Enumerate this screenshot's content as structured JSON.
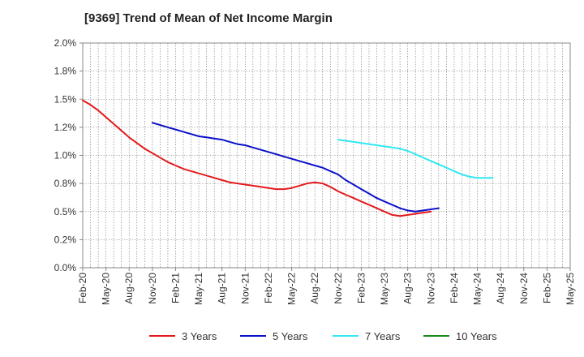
{
  "chart_data": {
    "type": "line",
    "title": "[9369]  Trend of Mean of Net Income Margin",
    "xlabel": "",
    "ylabel": "",
    "ylim": [
      0,
      2.0
    ],
    "yticks": [
      "0.0%",
      "0.2%",
      "0.5%",
      "0.8%",
      "1.0%",
      "1.2%",
      "1.5%",
      "1.8%",
      "2.0%"
    ],
    "xticks": [
      "Feb-20",
      "May-20",
      "Aug-20",
      "Nov-20",
      "Feb-21",
      "May-21",
      "Aug-21",
      "Nov-21",
      "Feb-22",
      "May-22",
      "Aug-22",
      "Nov-22",
      "Feb-23",
      "May-23",
      "Aug-23",
      "Nov-23",
      "Feb-24",
      "May-24",
      "Aug-24",
      "Nov-24",
      "Feb-25",
      "May-25"
    ],
    "grid": true,
    "legend_position": "bottom",
    "series": [
      {
        "name": "3 Years",
        "color": "#e31a1c",
        "start_index": 0,
        "values": [
          1.49,
          1.45,
          1.4,
          1.34,
          1.28,
          1.22,
          1.16,
          1.11,
          1.06,
          1.02,
          0.98,
          0.94,
          0.91,
          0.88,
          0.86,
          0.84,
          0.82,
          0.8,
          0.78,
          0.76,
          0.75,
          0.74,
          0.73,
          0.72,
          0.71,
          0.7,
          0.7,
          0.71,
          0.73,
          0.75,
          0.76,
          0.75,
          0.72,
          0.68,
          0.65,
          0.62,
          0.59,
          0.56,
          0.53,
          0.5,
          0.47,
          0.46,
          0.47,
          0.48,
          0.49,
          0.5
        ]
      },
      {
        "name": "5 Years",
        "color": "#0a10c8",
        "start_index": 9,
        "values": [
          1.29,
          1.27,
          1.25,
          1.23,
          1.21,
          1.19,
          1.17,
          1.16,
          1.15,
          1.14,
          1.12,
          1.1,
          1.09,
          1.07,
          1.05,
          1.03,
          1.01,
          0.99,
          0.97,
          0.95,
          0.93,
          0.91,
          0.89,
          0.86,
          0.83,
          0.78,
          0.74,
          0.7,
          0.66,
          0.62,
          0.59,
          0.56,
          0.53,
          0.51,
          0.5,
          0.51,
          0.52,
          0.53
        ]
      },
      {
        "name": "7 Years",
        "color": "#33e8f0",
        "start_index": 33,
        "values": [
          1.14,
          1.13,
          1.12,
          1.11,
          1.1,
          1.09,
          1.08,
          1.07,
          1.06,
          1.04,
          1.01,
          0.98,
          0.95,
          0.92,
          0.89,
          0.86,
          0.83,
          0.81,
          0.8,
          0.8,
          0.8
        ]
      },
      {
        "name": "10 Years",
        "color": "#1a8a1a",
        "start_index": 0,
        "values": []
      }
    ]
  }
}
